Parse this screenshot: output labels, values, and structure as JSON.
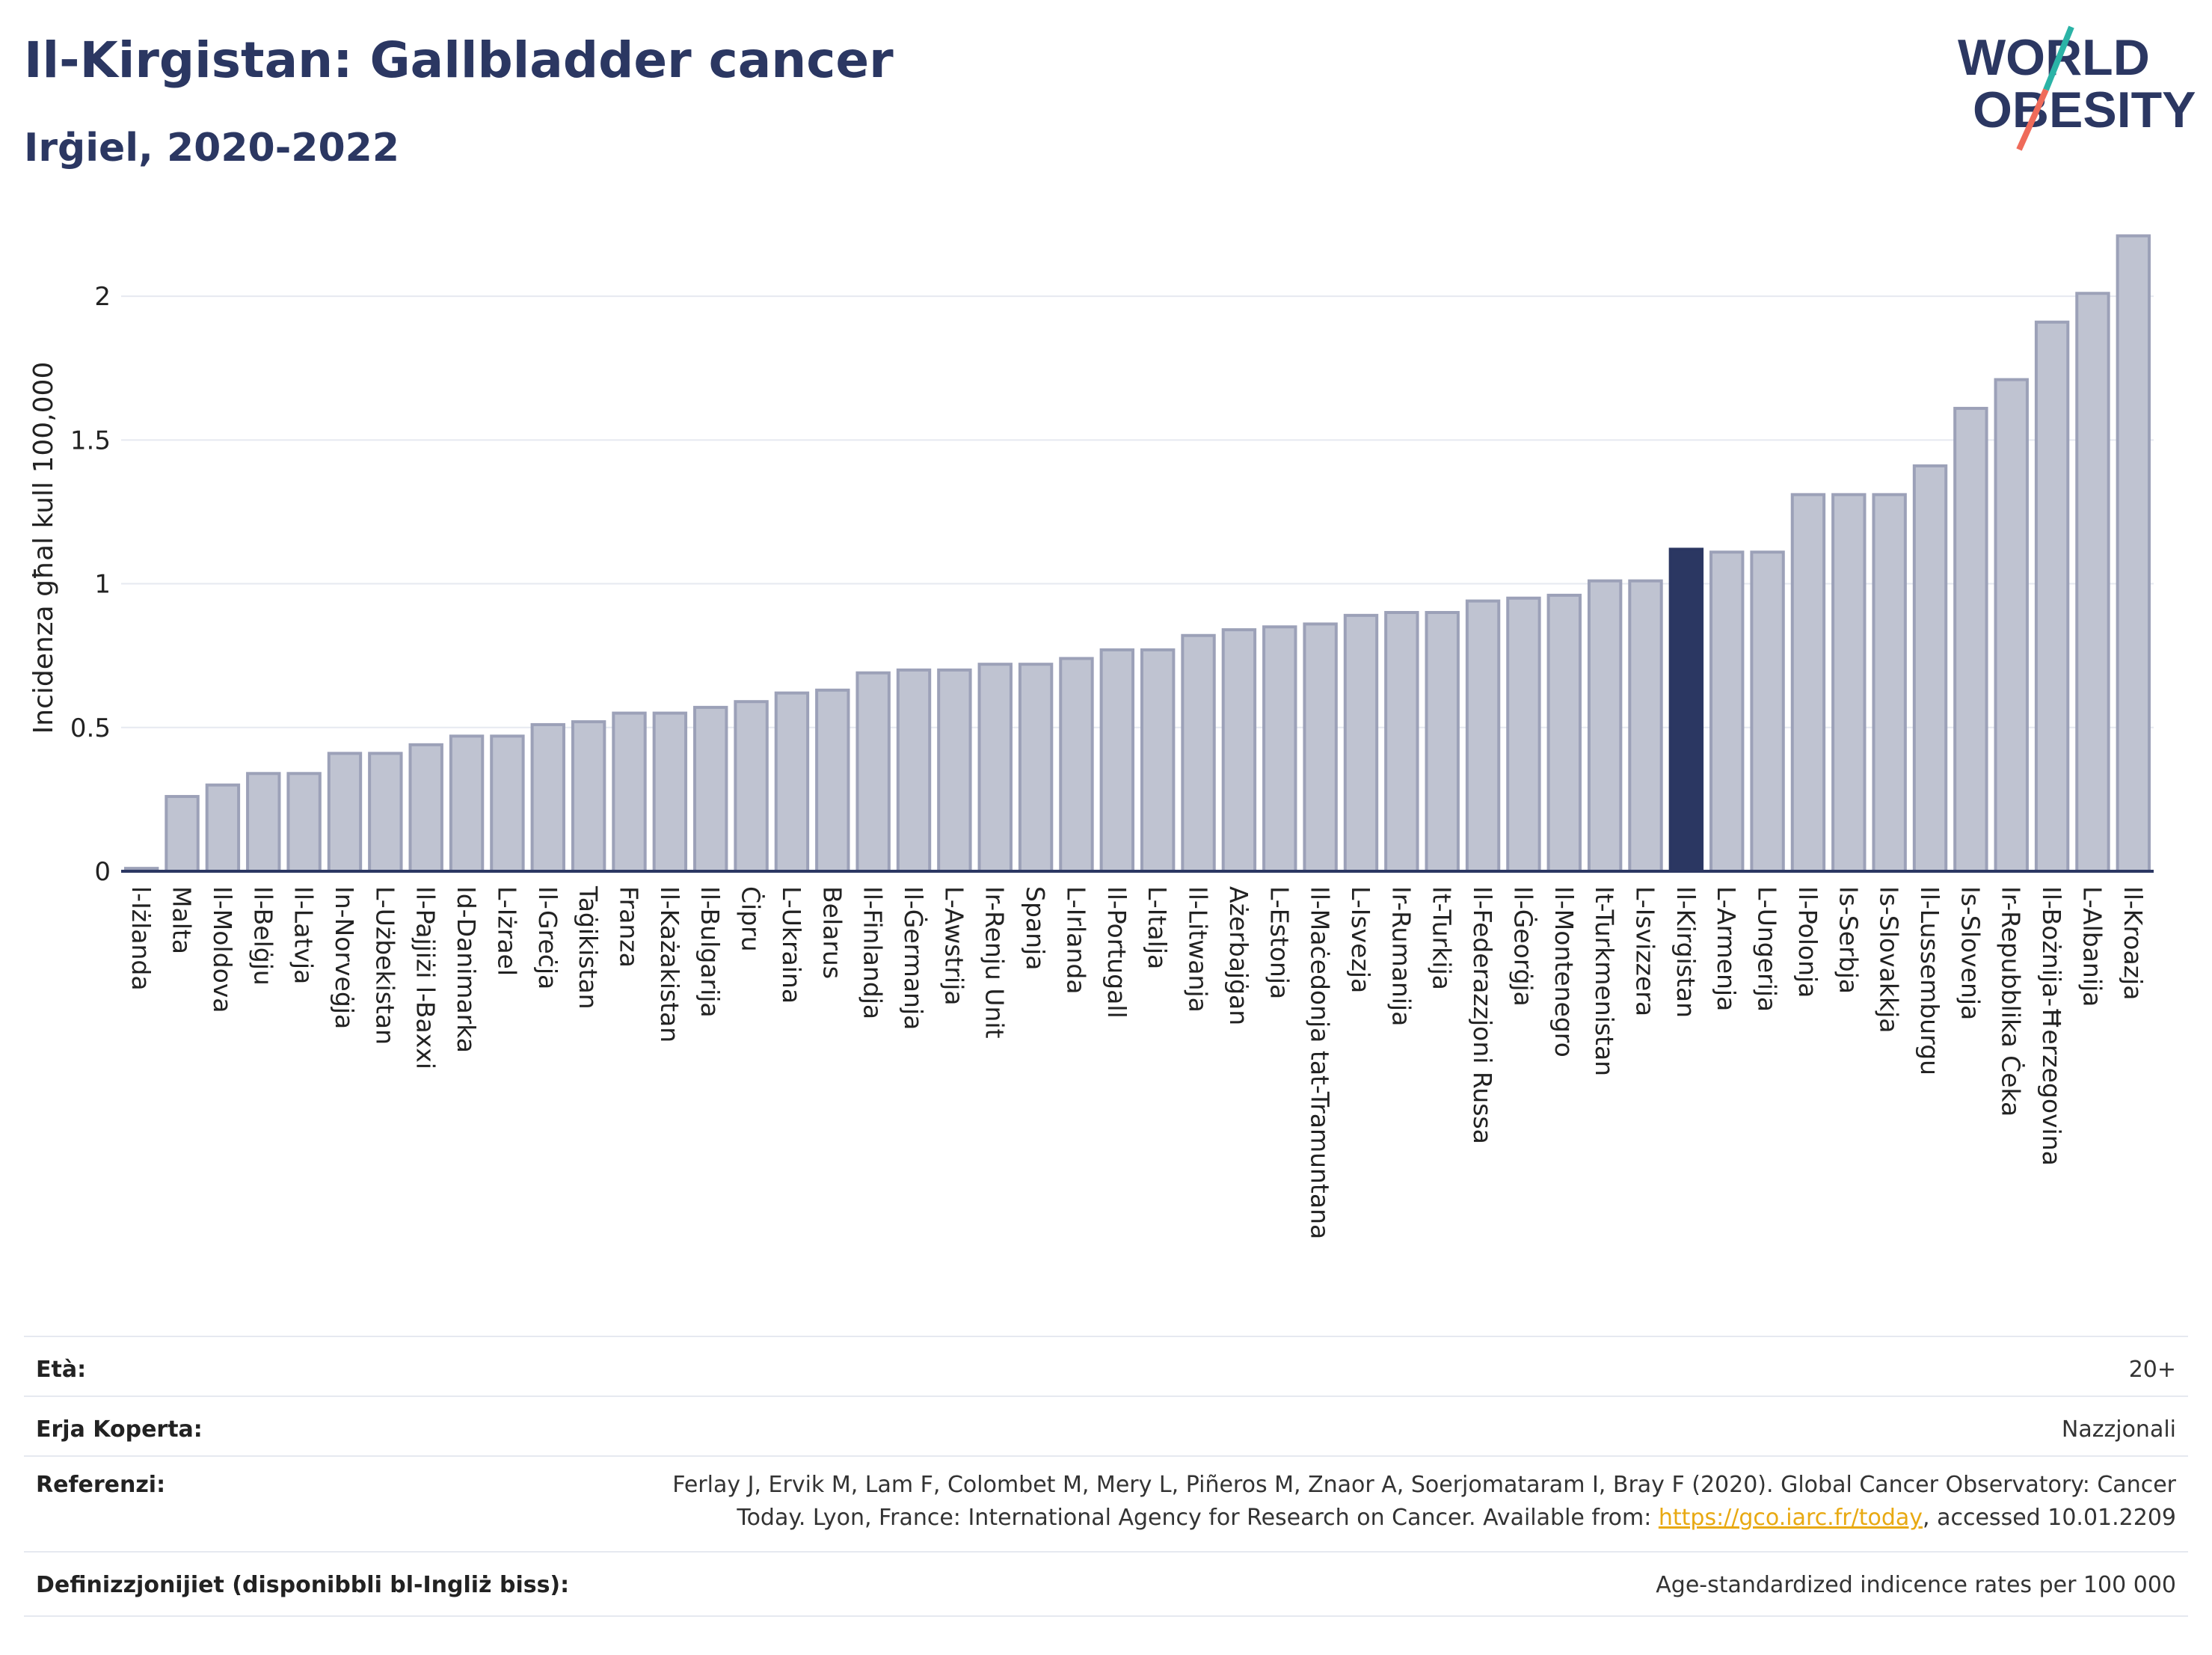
{
  "header": {
    "title": "Il-Kirgistan: Gallbladder cancer",
    "subtitle": "Irġiel, 2020-2022"
  },
  "logo": {
    "line1": "WORLD",
    "line2": "OBESITY"
  },
  "chart_data": {
    "type": "bar",
    "ylabel": "Incidenza għal kull 100,000",
    "ylim": [
      0,
      2.25
    ],
    "yticks": [
      0,
      0.5,
      1,
      1.5,
      2
    ],
    "ytick_labels": [
      "0",
      "0.5",
      "1",
      "1.5",
      "2"
    ],
    "grid": true,
    "highlight": "Il-Kirgistan",
    "colors": {
      "bar": "#bfc3d1",
      "bar_edge": "#9ca1b8",
      "highlight": "#2b3762",
      "grid": "#e6e9f0",
      "axis": "#2b3762"
    },
    "categories": [
      "l-Iżlanda",
      "Malta",
      "Il-Moldova",
      "Il-Belġju",
      "Il-Latvja",
      "In-Norveġja",
      "L-Użbekistan",
      "Il-Pajjiżi l-Baxxi",
      "Id-Danimarka",
      "L-Iżrael",
      "Il-Greċja",
      "Taġikistan",
      "Franza",
      "Il-Każakistan",
      "Il-Bulgarija",
      "Ċipru",
      "L-Ukraina",
      "Belarus",
      "Il-Finlandja",
      "Il-Ġermanja",
      "L-Awstrija",
      "Ir-Renju Unit",
      "Spanja",
      "L-Irlanda",
      "Il-Portugall",
      "L-Italja",
      "Il-Litwanja",
      "Ażerbajġan",
      "L-Estonja",
      "Il-Maċedonja tat-Tramuntana",
      "L-Isvezja",
      "Ir-Rumanija",
      "It-Turkija",
      "Il-Federazzjoni Russa",
      "Il-Ġeorġja",
      "Il-Montenegro",
      "It-Turkmenistan",
      "L-Isvizzera",
      "Il-Kirgistan",
      "L-Armenja",
      "L-Ungerija",
      "Il-Polonja",
      "Is-Serbja",
      "Is-Slovakkja",
      "Il-Lussemburgu",
      "Is-Slovenja",
      "Ir-Repubblika Ċeka",
      "Il-Bożnija-Ħerzegovina",
      "L-Albanija",
      "Il-Kroazja"
    ],
    "values": [
      0.01,
      0.26,
      0.3,
      0.34,
      0.34,
      0.41,
      0.41,
      0.44,
      0.47,
      0.47,
      0.51,
      0.52,
      0.55,
      0.55,
      0.57,
      0.59,
      0.62,
      0.63,
      0.69,
      0.7,
      0.7,
      0.72,
      0.72,
      0.74,
      0.77,
      0.77,
      0.82,
      0.84,
      0.85,
      0.86,
      0.89,
      0.9,
      0.9,
      0.94,
      0.95,
      0.96,
      1.01,
      1.01,
      1.12,
      1.11,
      1.11,
      1.31,
      1.31,
      1.31,
      1.41,
      1.61,
      1.71,
      1.91,
      2.01,
      2.21
    ]
  },
  "info": {
    "age_label": "Età:",
    "age_value": "20+",
    "area_label": "Erja Koperta:",
    "area_value": "Nazzjonali",
    "ref_label": "Referenzi:",
    "ref_line1": "Ferlay J, Ervik M, Lam F, Colombet M, Mery L, Piñeros M, Znaor A, Soerjomataram I, Bray F (2020). Global Cancer Observatory: Cancer",
    "ref_line2_pre": "Today. Lyon, France: International Agency for Research on Cancer. Available from: ",
    "ref_link": "https://gco.iarc.fr/today",
    "ref_line2_post": ", accessed 10.01.2209",
    "def_label": "Definizzjonijiet (disponibbli bl-Ingliż biss):",
    "def_value": "Age-standardized indicence rates per 100 000"
  }
}
